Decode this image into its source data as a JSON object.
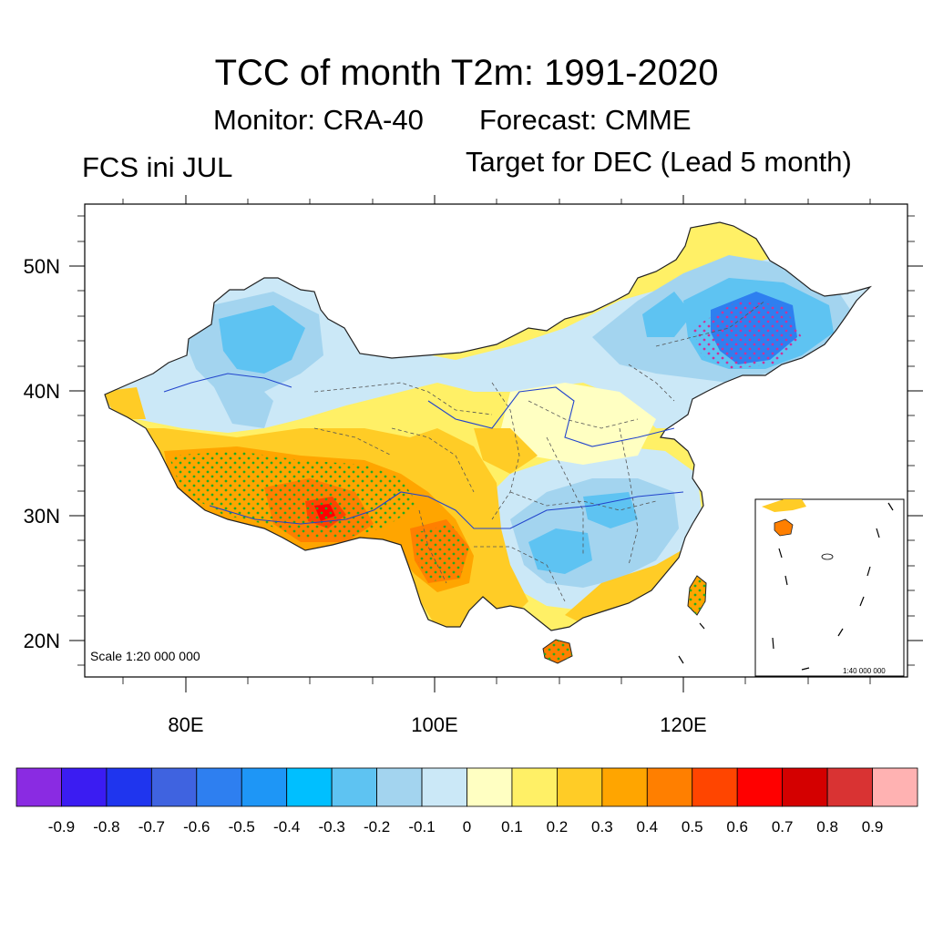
{
  "title": "TCC of month T2m: 1991-2020",
  "subtitle_monitor": "Monitor: CRA-40",
  "subtitle_forecast": "Forecast: CMME",
  "left_string": "FCS ini JUL",
  "right_string": "Target for DEC (Lead 5 month)",
  "map": {
    "scale_text": "Scale 1:20 000 000",
    "inset_scale_text": "1:40 000 000",
    "lon_ticks": [
      "80E",
      "100E",
      "120E"
    ],
    "lat_ticks": [
      "50N",
      "40N",
      "30N",
      "20N"
    ]
  },
  "colorbar": {
    "labels": [
      "-0.9",
      "-0.8",
      "-0.7",
      "-0.6",
      "-0.5",
      "-0.4",
      "-0.3",
      "-0.2",
      "-0.1",
      "0",
      "0.1",
      "0.2",
      "0.3",
      "0.4",
      "0.5",
      "0.6",
      "0.7",
      "0.8",
      "0.9"
    ],
    "colors": [
      "#8a2be2",
      "#3b1cf2",
      "#1f35ee",
      "#3f63e0",
      "#2e7ff0",
      "#1e96f6",
      "#00bfff",
      "#5ec3f2",
      "#a3d4ef",
      "#cbe8f7",
      "#ffffc2",
      "#fff066",
      "#ffcc26",
      "#ffa500",
      "#ff7f00",
      "#ff4500",
      "#ff0000",
      "#d40000",
      "#d93333",
      "#ffb2b2"
    ]
  }
}
